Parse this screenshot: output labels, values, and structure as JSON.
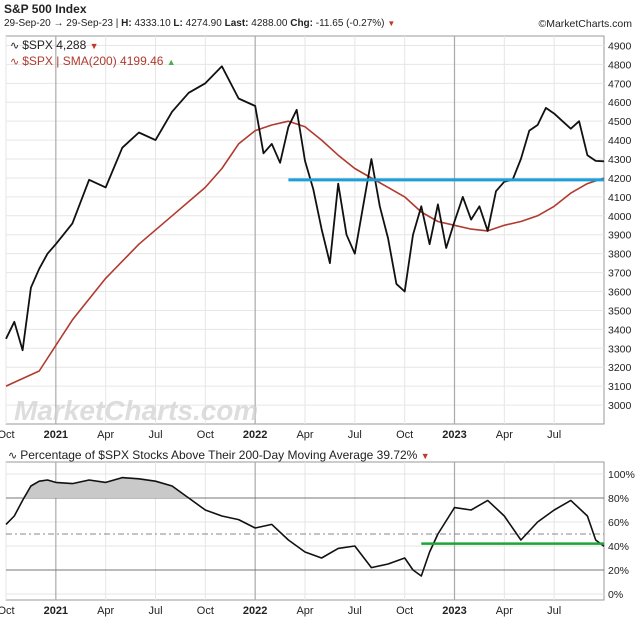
{
  "header": {
    "title": "S&P 500 Index",
    "date_from": "29-Sep-20",
    "date_to": "29-Sep-23",
    "high_label": "H:",
    "high": "4333.10",
    "low_label": "L:",
    "low": "4274.90",
    "last_label": "Last:",
    "last": "4288.00",
    "chg_label": "Chg:",
    "chg": "-11.65 (-0.27%)",
    "brand": "©MarketCharts.com"
  },
  "colors": {
    "price": "#111111",
    "sma": "#b03a2e",
    "support": "#1a9fd9",
    "pct_support": "#1fa33a",
    "down": "#c0392b",
    "up": "#4caf50"
  },
  "chart_data": [
    {
      "type": "line",
      "title": "$SPX price with 200-day SMA",
      "legend": [
        {
          "label": "$SPX 4,288",
          "trend": "down"
        },
        {
          "label": "$SPX | SMA(200) 4199.46",
          "trend": "up"
        }
      ],
      "watermark": "MarketCharts.com",
      "x_tick_labels": [
        "Oct",
        "2021",
        "Apr",
        "Jul",
        "Oct",
        "2022",
        "Apr",
        "Jul",
        "Oct",
        "2023",
        "Apr",
        "Jul"
      ],
      "x_tick_months": [
        0,
        3,
        6,
        9,
        12,
        15,
        18,
        21,
        24,
        27,
        30,
        33
      ],
      "xlim": [
        0,
        36
      ],
      "ylim": [
        2900,
        4950
      ],
      "yticks": [
        3000,
        3100,
        3200,
        3300,
        3400,
        3500,
        3600,
        3700,
        3800,
        3900,
        4000,
        4100,
        4200,
        4300,
        4400,
        4500,
        4600,
        4700,
        4800,
        4900
      ],
      "series": [
        {
          "name": "$SPX",
          "x": [
            0,
            0.5,
            1,
            1.5,
            2,
            2.5,
            3,
            4,
            5,
            6,
            7,
            8,
            9,
            10,
            11,
            12,
            13,
            14,
            15,
            15.5,
            16,
            16.5,
            17,
            17.5,
            18,
            18.5,
            19,
            19.5,
            20,
            20.5,
            21,
            21.5,
            22,
            22.5,
            23,
            23.5,
            24,
            24.5,
            25,
            25.5,
            26,
            26.5,
            27,
            27.5,
            28,
            28.5,
            29,
            29.5,
            30,
            30.5,
            31,
            31.5,
            32,
            32.5,
            33,
            33.5,
            34,
            34.5,
            35,
            35.5,
            36
          ],
          "values": [
            3350,
            3440,
            3290,
            3620,
            3720,
            3800,
            3850,
            3960,
            4190,
            4150,
            4360,
            4440,
            4400,
            4550,
            4650,
            4700,
            4790,
            4620,
            4580,
            4330,
            4380,
            4280,
            4470,
            4560,
            4290,
            4140,
            3930,
            3750,
            4170,
            3900,
            3800,
            4050,
            4300,
            4050,
            3880,
            3640,
            3600,
            3900,
            4050,
            3850,
            4060,
            3830,
            3970,
            4100,
            3980,
            4050,
            3920,
            4130,
            4180,
            4190,
            4300,
            4450,
            4480,
            4570,
            4540,
            4500,
            4460,
            4500,
            4320,
            4290,
            4288
          ]
        },
        {
          "name": "SMA(200)",
          "x": [
            0,
            2,
            4,
            6,
            8,
            10,
            12,
            13,
            14,
            15,
            16,
            17,
            18,
            19,
            20,
            21,
            22,
            23,
            24,
            25,
            26,
            27,
            28,
            29,
            30,
            31,
            32,
            33,
            34,
            35,
            36
          ],
          "values": [
            3100,
            3180,
            3450,
            3670,
            3850,
            4000,
            4150,
            4250,
            4380,
            4450,
            4480,
            4500,
            4470,
            4400,
            4320,
            4250,
            4200,
            4150,
            4100,
            4020,
            3970,
            3950,
            3930,
            3920,
            3950,
            3970,
            4000,
            4050,
            4120,
            4170,
            4199
          ]
        }
      ],
      "support_level": {
        "value": 4190,
        "x_start": 17,
        "x_end": 36
      }
    },
    {
      "type": "line",
      "title": "Percentage of $SPX Stocks Above Their 200-Day Moving Average 39.72%",
      "legend_label": "Percentage of $SPX Stocks Above Their 200-Day Moving Average 39.72%",
      "trend": "down",
      "x_tick_labels": [
        "Oct",
        "2021",
        "Apr",
        "Jul",
        "Oct",
        "2022",
        "Apr",
        "Jul",
        "Oct",
        "2023",
        "Apr",
        "Jul"
      ],
      "x_tick_months": [
        0,
        3,
        6,
        9,
        12,
        15,
        18,
        21,
        24,
        27,
        30,
        33
      ],
      "xlim": [
        0,
        36
      ],
      "ylim": [
        -5,
        110
      ],
      "yticks": [
        0,
        20,
        40,
        60,
        80,
        100
      ],
      "ytick_labels": [
        "0%",
        "20%",
        "40%",
        "60%",
        "80%",
        "100%"
      ],
      "reference_lines": [
        20,
        50,
        80
      ],
      "series": [
        {
          "name": "Pct above 200-DMA",
          "x": [
            0,
            0.5,
            1,
            1.5,
            2,
            2.5,
            3,
            4,
            5,
            6,
            7,
            8,
            9,
            10,
            11,
            12,
            13,
            14,
            15,
            16,
            17,
            18,
            19,
            20,
            21,
            22,
            23,
            24,
            24.5,
            25,
            25.5,
            26,
            27,
            28,
            29,
            30,
            31,
            32,
            33,
            34,
            35,
            35.5,
            36
          ],
          "values": [
            58,
            65,
            78,
            90,
            94,
            95,
            93,
            92,
            95,
            93,
            97,
            96,
            94,
            90,
            80,
            70,
            65,
            62,
            55,
            58,
            45,
            35,
            30,
            38,
            40,
            22,
            25,
            30,
            20,
            15,
            35,
            50,
            72,
            70,
            78,
            65,
            45,
            60,
            70,
            78,
            65,
            45,
            39.72
          ]
        }
      ],
      "support_level": {
        "value": 42,
        "x_start": 25,
        "x_end": 36
      }
    }
  ]
}
